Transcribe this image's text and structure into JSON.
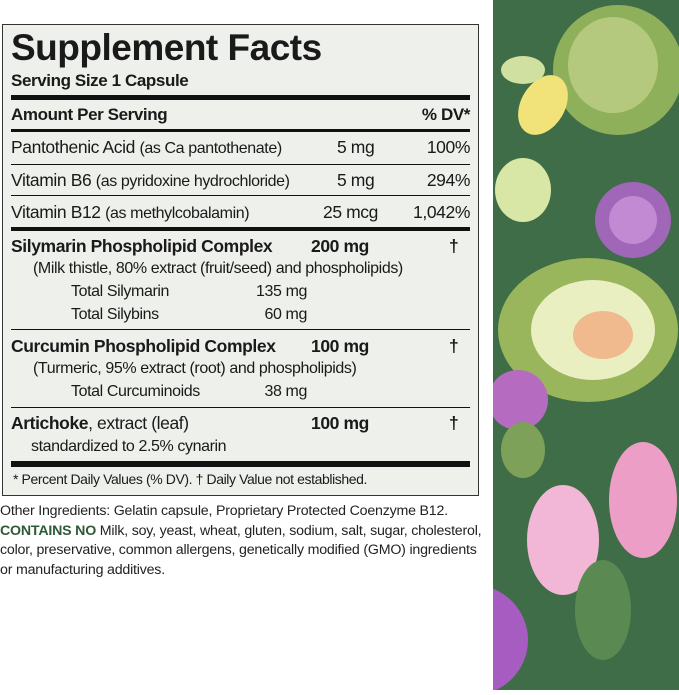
{
  "label": {
    "title": "Supplement Facts",
    "serving_size": "Serving Size 1 Capsule",
    "header_left": "Amount Per Serving",
    "header_right": "% DV*",
    "rows": [
      {
        "name": "Pantothenic Acid",
        "detail": "(as Ca pantothenate)",
        "amount": "5 mg",
        "dv": "100%"
      },
      {
        "name": "Vitamin B6",
        "detail": "(as pyridoxine hydrochloride)",
        "amount": "5 mg",
        "dv": "294%"
      },
      {
        "name": "Vitamin B12",
        "detail": "(as methylcobalamin)",
        "amount": "25 mcg",
        "dv": "1,042%"
      }
    ],
    "silymarin": {
      "name": "Silymarin Phospholipid Complex",
      "amount": "200 mg",
      "dv": "†",
      "detail": "(Milk thistle, 80% extract (fruit/seed) and phospholipids)",
      "subs": [
        {
          "name": "Total Silymarin",
          "amount": "135 mg"
        },
        {
          "name": "Total Silybins",
          "amount": "60 mg"
        }
      ]
    },
    "curcumin": {
      "name": "Curcumin Phospholipid Complex",
      "amount": "100 mg",
      "dv": "†",
      "detail": "(Turmeric, 95% extract (root) and phospholipids)",
      "subs": [
        {
          "name": "Total Curcuminoids",
          "amount": "38 mg"
        }
      ]
    },
    "artichoke": {
      "name": "Artichoke",
      "name_rest": ", extract (leaf)",
      "amount": "100 mg",
      "dv": "†",
      "detail": "standardized to 2.5% cynarin"
    },
    "footnote": "* Percent Daily Values (% DV). † Daily Value not established."
  },
  "other_ingredients": "Other Ingredients: Gelatin capsule, Proprietary Protected Coenzyme B12.",
  "contains_no_label": "CONTAINS NO",
  "contains_no_text": " Milk, soy, yeast, wheat, gluten, sodium, salt, sugar, cholesterol, color, preservative, common allergens, genetically modified (GMO) ingredients or manufacturing additives.",
  "colors": {
    "panel": "#eef0ec",
    "accent_green": "#2f5a37",
    "art_bg": "#3f6d47"
  }
}
